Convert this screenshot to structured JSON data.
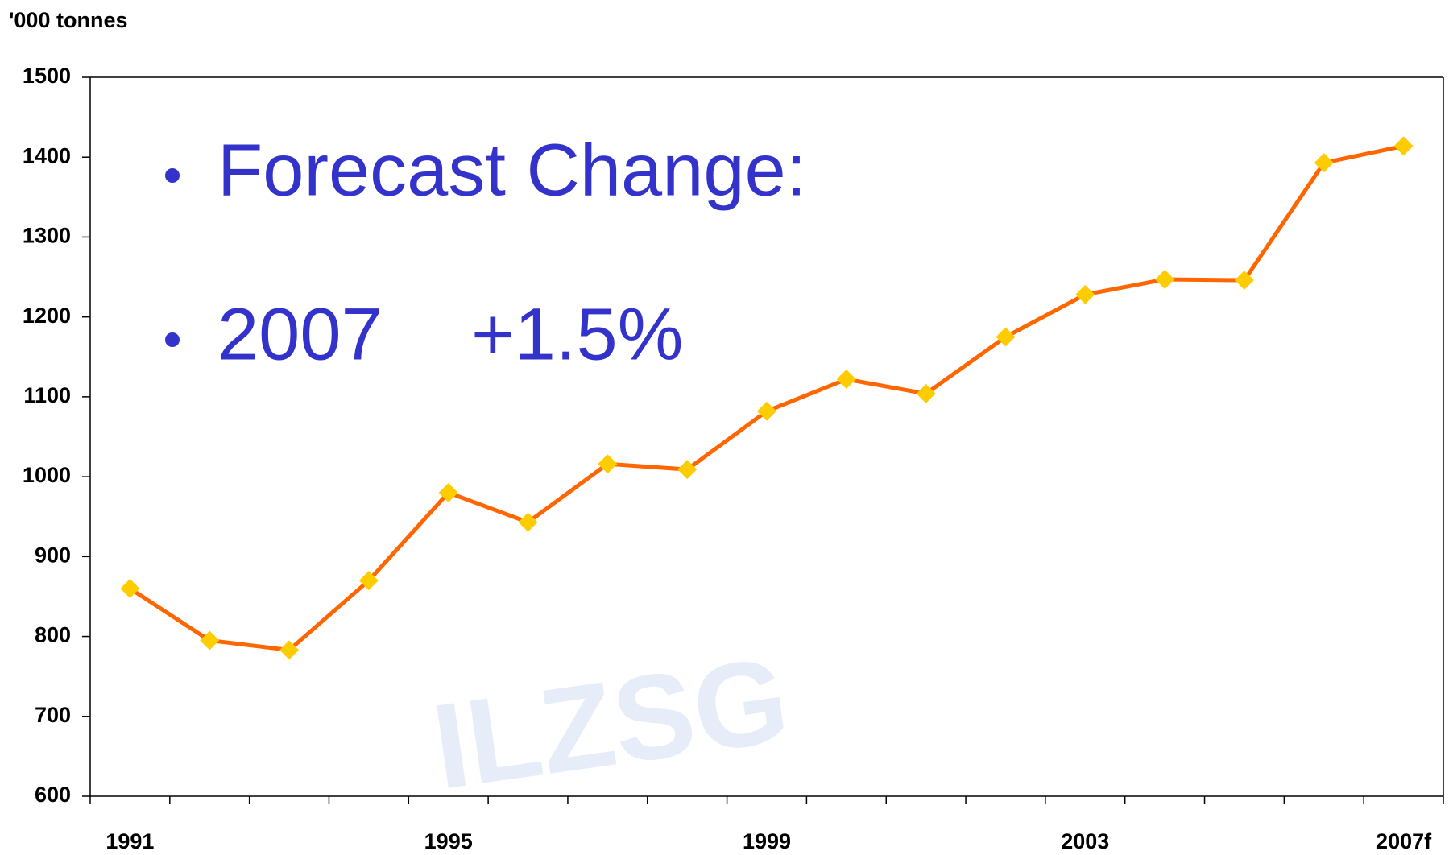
{
  "chart_data": {
    "type": "line",
    "y_axis_label": "'000 tonnes",
    "annotations": [
      "Forecast Change:",
      "2007",
      "+1.5%"
    ],
    "watermark": "ILZSG",
    "categories": [
      "1991",
      null,
      null,
      null,
      "1995",
      null,
      null,
      null,
      "1999",
      null,
      null,
      null,
      "2003",
      null,
      null,
      null,
      "2007f"
    ],
    "values": [
      860,
      795,
      783,
      870,
      980,
      943,
      1016,
      1009,
      1082,
      1122,
      1104,
      1175,
      1228,
      1247,
      1246,
      1393,
      1414
    ],
    "color": "#ff6600",
    "marker_color": "#ffcc00",
    "annotation_color": "#3333cc",
    "ylim": [
      600,
      1500
    ],
    "yticks": [
      600,
      700,
      800,
      900,
      1000,
      1100,
      1200,
      1300,
      1400,
      1500
    ],
    "grid": false
  }
}
